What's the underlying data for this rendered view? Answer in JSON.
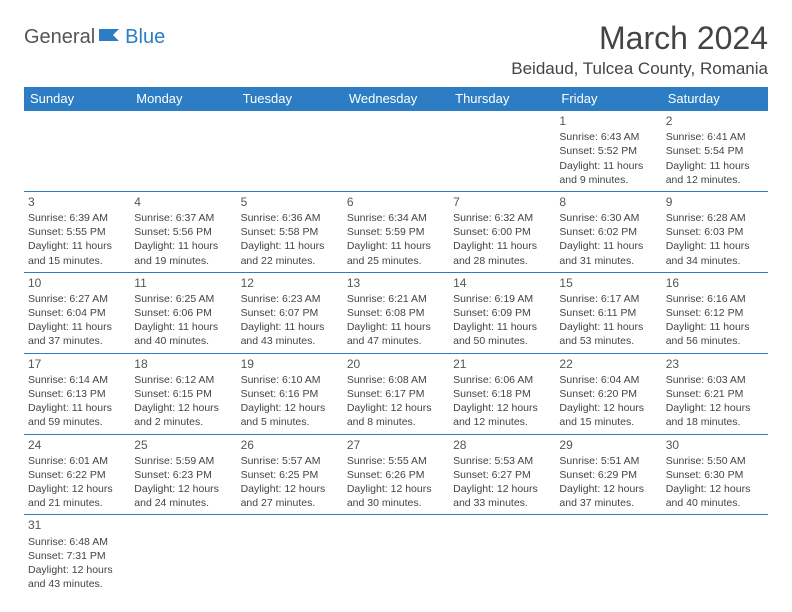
{
  "logo": {
    "part1": "General",
    "part2": "Blue"
  },
  "title": "March 2024",
  "location": "Beidaud, Tulcea County, Romania",
  "colors": {
    "header_bg": "#2d7dc4",
    "header_text": "#ffffff",
    "border": "#2d7dc4",
    "text": "#444444",
    "logo_gray": "#555555",
    "logo_blue": "#2d7dc4"
  },
  "day_headers": [
    "Sunday",
    "Monday",
    "Tuesday",
    "Wednesday",
    "Thursday",
    "Friday",
    "Saturday"
  ],
  "weeks": [
    [
      null,
      null,
      null,
      null,
      null,
      {
        "n": "1",
        "sunrise": "6:43 AM",
        "sunset": "5:52 PM",
        "daylight": "11 hours and 9 minutes."
      },
      {
        "n": "2",
        "sunrise": "6:41 AM",
        "sunset": "5:54 PM",
        "daylight": "11 hours and 12 minutes."
      }
    ],
    [
      {
        "n": "3",
        "sunrise": "6:39 AM",
        "sunset": "5:55 PM",
        "daylight": "11 hours and 15 minutes."
      },
      {
        "n": "4",
        "sunrise": "6:37 AM",
        "sunset": "5:56 PM",
        "daylight": "11 hours and 19 minutes."
      },
      {
        "n": "5",
        "sunrise": "6:36 AM",
        "sunset": "5:58 PM",
        "daylight": "11 hours and 22 minutes."
      },
      {
        "n": "6",
        "sunrise": "6:34 AM",
        "sunset": "5:59 PM",
        "daylight": "11 hours and 25 minutes."
      },
      {
        "n": "7",
        "sunrise": "6:32 AM",
        "sunset": "6:00 PM",
        "daylight": "11 hours and 28 minutes."
      },
      {
        "n": "8",
        "sunrise": "6:30 AM",
        "sunset": "6:02 PM",
        "daylight": "11 hours and 31 minutes."
      },
      {
        "n": "9",
        "sunrise": "6:28 AM",
        "sunset": "6:03 PM",
        "daylight": "11 hours and 34 minutes."
      }
    ],
    [
      {
        "n": "10",
        "sunrise": "6:27 AM",
        "sunset": "6:04 PM",
        "daylight": "11 hours and 37 minutes."
      },
      {
        "n": "11",
        "sunrise": "6:25 AM",
        "sunset": "6:06 PM",
        "daylight": "11 hours and 40 minutes."
      },
      {
        "n": "12",
        "sunrise": "6:23 AM",
        "sunset": "6:07 PM",
        "daylight": "11 hours and 43 minutes."
      },
      {
        "n": "13",
        "sunrise": "6:21 AM",
        "sunset": "6:08 PM",
        "daylight": "11 hours and 47 minutes."
      },
      {
        "n": "14",
        "sunrise": "6:19 AM",
        "sunset": "6:09 PM",
        "daylight": "11 hours and 50 minutes."
      },
      {
        "n": "15",
        "sunrise": "6:17 AM",
        "sunset": "6:11 PM",
        "daylight": "11 hours and 53 minutes."
      },
      {
        "n": "16",
        "sunrise": "6:16 AM",
        "sunset": "6:12 PM",
        "daylight": "11 hours and 56 minutes."
      }
    ],
    [
      {
        "n": "17",
        "sunrise": "6:14 AM",
        "sunset": "6:13 PM",
        "daylight": "11 hours and 59 minutes."
      },
      {
        "n": "18",
        "sunrise": "6:12 AM",
        "sunset": "6:15 PM",
        "daylight": "12 hours and 2 minutes."
      },
      {
        "n": "19",
        "sunrise": "6:10 AM",
        "sunset": "6:16 PM",
        "daylight": "12 hours and 5 minutes."
      },
      {
        "n": "20",
        "sunrise": "6:08 AM",
        "sunset": "6:17 PM",
        "daylight": "12 hours and 8 minutes."
      },
      {
        "n": "21",
        "sunrise": "6:06 AM",
        "sunset": "6:18 PM",
        "daylight": "12 hours and 12 minutes."
      },
      {
        "n": "22",
        "sunrise": "6:04 AM",
        "sunset": "6:20 PM",
        "daylight": "12 hours and 15 minutes."
      },
      {
        "n": "23",
        "sunrise": "6:03 AM",
        "sunset": "6:21 PM",
        "daylight": "12 hours and 18 minutes."
      }
    ],
    [
      {
        "n": "24",
        "sunrise": "6:01 AM",
        "sunset": "6:22 PM",
        "daylight": "12 hours and 21 minutes."
      },
      {
        "n": "25",
        "sunrise": "5:59 AM",
        "sunset": "6:23 PM",
        "daylight": "12 hours and 24 minutes."
      },
      {
        "n": "26",
        "sunrise": "5:57 AM",
        "sunset": "6:25 PM",
        "daylight": "12 hours and 27 minutes."
      },
      {
        "n": "27",
        "sunrise": "5:55 AM",
        "sunset": "6:26 PM",
        "daylight": "12 hours and 30 minutes."
      },
      {
        "n": "28",
        "sunrise": "5:53 AM",
        "sunset": "6:27 PM",
        "daylight": "12 hours and 33 minutes."
      },
      {
        "n": "29",
        "sunrise": "5:51 AM",
        "sunset": "6:29 PM",
        "daylight": "12 hours and 37 minutes."
      },
      {
        "n": "30",
        "sunrise": "5:50 AM",
        "sunset": "6:30 PM",
        "daylight": "12 hours and 40 minutes."
      }
    ],
    [
      {
        "n": "31",
        "sunrise": "6:48 AM",
        "sunset": "7:31 PM",
        "daylight": "12 hours and 43 minutes."
      },
      null,
      null,
      null,
      null,
      null,
      null
    ]
  ],
  "labels": {
    "sunrise": "Sunrise:",
    "sunset": "Sunset:",
    "daylight": "Daylight:"
  }
}
